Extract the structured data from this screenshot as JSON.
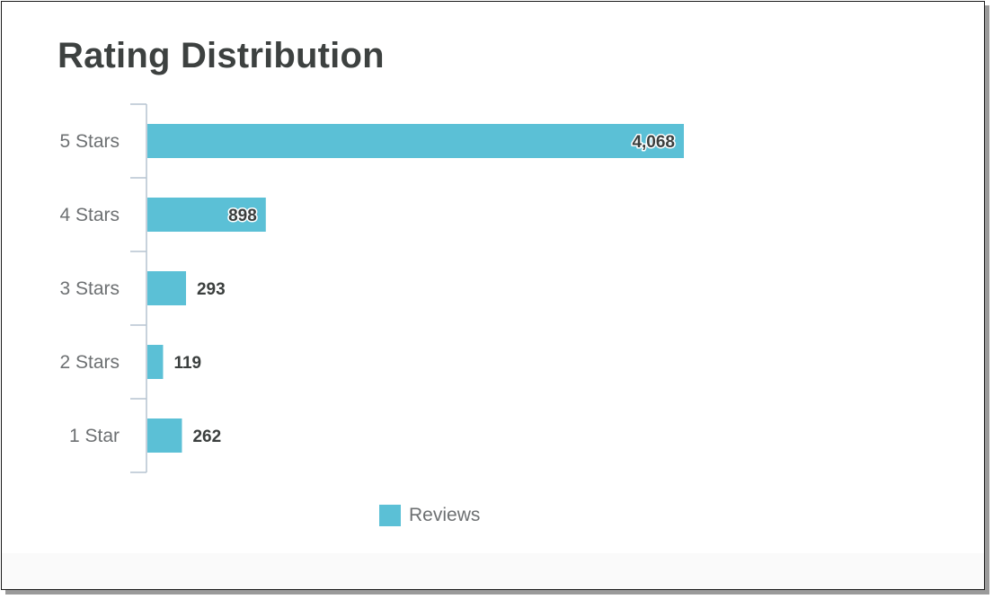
{
  "chart_data": {
    "type": "bar",
    "orientation": "horizontal",
    "title": "Rating Distribution",
    "categories": [
      "5 Stars",
      "4 Stars",
      "3 Stars",
      "2 Stars",
      "1 Star"
    ],
    "series": [
      {
        "name": "Reviews",
        "color": "#5bc0d6",
        "values": [
          4068,
          898,
          293,
          119,
          262
        ],
        "labels": [
          "4,068",
          "898",
          "293",
          "119",
          "262"
        ]
      }
    ],
    "xlim": [
      0,
      6000
    ],
    "grid": false,
    "legend_position": "bottom-center",
    "axis_color": "#b5c4d1"
  }
}
